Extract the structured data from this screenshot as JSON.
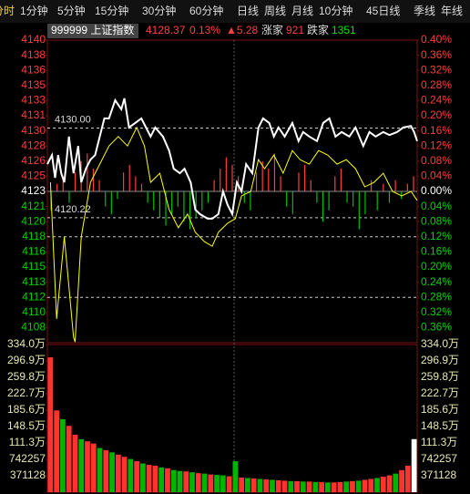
{
  "tabs": [
    "分时",
    "1分钟",
    "5分钟",
    "15分钟",
    "30分钟",
    "60分钟",
    "日线",
    "周线",
    "月线",
    "10分钟",
    "45日线",
    "季线",
    "年线"
  ],
  "header": {
    "code_name": "999999 上证指数",
    "price": "4128.37",
    "change_pct": "0.13%",
    "change": "▲5.28",
    "up_label": "涨家",
    "up_count": "921",
    "down_label": "跌家",
    "down_count": "1351"
  },
  "chart_data": [
    {
      "type": "line",
      "name": "price-panel",
      "ylim": [
        -0.4,
        0.4
      ],
      "xlim": [
        0,
        240
      ],
      "yticks": [
        {
          "value": 0.4,
          "label": "4140"
        },
        {
          "value": 0.36,
          "label": "4138"
        },
        {
          "value": 0.32,
          "label": "4136"
        },
        {
          "value": 0.28,
          "label": "4135"
        },
        {
          "value": 0.24,
          "label": "4133"
        },
        {
          "value": 0.2,
          "label": "4131"
        },
        {
          "value": 0.16,
          "label": "4130"
        },
        {
          "value": 0.12,
          "label": "4128"
        },
        {
          "value": 0.08,
          "label": "4126"
        },
        {
          "value": 0.04,
          "label": "4125"
        },
        {
          "value": 0,
          "label": "4123"
        },
        {
          "value": -0.04,
          "label": "4121"
        },
        {
          "value": -0.08,
          "label": "4120"
        },
        {
          "value": -0.12,
          "label": "4118"
        },
        {
          "value": -0.16,
          "label": "4116"
        },
        {
          "value": -0.2,
          "label": "4115"
        },
        {
          "value": -0.24,
          "label": "4113"
        },
        {
          "value": -0.28,
          "label": "4112"
        },
        {
          "value": -0.32,
          "label": "4110"
        },
        {
          "value": -0.36,
          "label": "4108"
        }
      ],
      "y2ticks": [
        {
          "value": 0.4,
          "label": "0.40%"
        },
        {
          "value": 0.36,
          "label": "0.36%"
        },
        {
          "value": 0.32,
          "label": "0.32%"
        },
        {
          "value": 0.28,
          "label": "0.28%"
        },
        {
          "value": 0.24,
          "label": "0.24%"
        },
        {
          "value": 0.2,
          "label": "0.20%"
        },
        {
          "value": 0.16,
          "label": "0.16%"
        },
        {
          "value": 0.12,
          "label": "0.12%"
        },
        {
          "value": 0.08,
          "label": "0.08%"
        },
        {
          "value": 0.04,
          "label": "0.04%"
        },
        {
          "value": 0,
          "label": "0.00%"
        },
        {
          "value": -0.04,
          "label": "0.04%"
        },
        {
          "value": -0.08,
          "label": "0.08%"
        },
        {
          "value": -0.12,
          "label": "0.12%"
        },
        {
          "value": -0.16,
          "label": "0.16%"
        },
        {
          "value": -0.2,
          "label": "0.20%"
        },
        {
          "value": -0.24,
          "label": "0.24%"
        },
        {
          "value": -0.28,
          "label": "0.28%"
        },
        {
          "value": -0.32,
          "label": "0.32%"
        },
        {
          "value": -0.36,
          "label": "0.36%"
        }
      ],
      "annotations": [
        {
          "value": 0.1676,
          "label": "4130.00"
        },
        {
          "value": -0.0696,
          "label": "4120.22"
        }
      ],
      "dashed_levels": [
        -0.12,
        -0.28
      ],
      "series": [
        {
          "color": "#ffffff",
          "x": [
            0,
            3,
            5,
            7,
            9,
            11,
            14,
            17,
            20,
            22,
            25,
            28,
            31,
            34,
            37,
            40,
            44,
            48,
            50,
            53,
            57,
            61,
            64,
            67,
            70,
            75,
            79,
            82,
            86,
            89,
            93,
            96,
            99,
            104,
            107,
            111,
            114,
            117,
            120,
            123,
            126,
            129,
            133,
            137,
            140,
            144,
            147,
            150,
            154,
            159,
            163,
            166,
            170,
            175,
            179,
            183,
            187,
            191,
            196,
            200,
            205,
            209,
            213,
            218,
            222,
            227,
            231,
            236,
            238,
            240
          ],
          "values": [
            0.072,
            0.096,
            0.036,
            0.096,
            0.048,
            0.024,
            0.145,
            0.048,
            0.12,
            0.024,
            0.06,
            0.084,
            0.096,
            0.145,
            0.193,
            0.193,
            0.241,
            0.217,
            0.246,
            0.169,
            0.181,
            0.193,
            0.169,
            0.145,
            0.169,
            0.145,
            0.108,
            0.06,
            0.048,
            0.06,
            0.024,
            -0.048,
            -0.06,
            -0.072,
            -0.072,
            -0.06,
            0,
            -0.036,
            -0.06,
            0.024,
            0,
            0.072,
            0.048,
            0.169,
            0.193,
            0.181,
            0.145,
            0.169,
            0.145,
            0.181,
            0.133,
            0.157,
            0.145,
            0.133,
            0.181,
            0.193,
            0.145,
            0.157,
            0.145,
            0.169,
            0.12,
            0.157,
            0.145,
            0.157,
            0.149,
            0.157,
            0.169,
            0.173,
            0.157,
            0.133
          ]
        },
        {
          "color": "#ffff00",
          "x": [
            2,
            6,
            11,
            17,
            18,
            22,
            28,
            34,
            40,
            46,
            52,
            58,
            63,
            67,
            73,
            79,
            85,
            91,
            96,
            102,
            107,
            111,
            117,
            122,
            126,
            132,
            137,
            141,
            147,
            153,
            159,
            164,
            170,
            176,
            182,
            188,
            194,
            200,
            206,
            212,
            218,
            224,
            230,
            236,
            240
          ],
          "values": [
            0.024,
            -0.337,
            -0.12,
            -0.386,
            -0.398,
            -0.12,
            0.024,
            0.072,
            0.12,
            0.145,
            0.12,
            0.169,
            0.12,
            0.024,
            0.048,
            -0.048,
            -0.096,
            -0.06,
            -0.108,
            -0.133,
            -0.145,
            -0.108,
            -0.084,
            -0.072,
            -0.012,
            0,
            0.084,
            0.06,
            0.096,
            0.048,
            0.108,
            0.084,
            0.072,
            0.108,
            0.096,
            0.072,
            0.084,
            0.06,
            0.012,
            0.024,
            0.048,
            0,
            -0.012,
            0,
            -0.024
          ]
        }
      ],
      "breadth": [
        -0.05,
        0.02,
        0.04,
        -0.03,
        0.05,
        0.08,
        0.1,
        0.06,
        0.03,
        -0.04,
        -0.06,
        -0.02,
        0.05,
        0.07,
        0.04,
        0.02,
        -0.03,
        -0.05,
        -0.07,
        -0.09,
        -0.06,
        -0.04,
        -0.08,
        -0.1,
        -0.07,
        -0.05,
        -0.03,
        0.03,
        0.06,
        0.09,
        0.07,
        0.04,
        -0.03,
        -0.05,
        0.05,
        0.08,
        0.06,
        0.1,
        0.04,
        -0.04,
        -0.06,
        0.05,
        0.07,
        0.03,
        -0.03,
        -0.08,
        -0.05,
        0.04,
        0.06,
        -0.03,
        -0.04,
        -0.1,
        -0.06,
        0.03,
        -0.05,
        0.02,
        -0.03,
        0.03,
        -0.02,
        0.02,
        0.04
      ]
    },
    {
      "type": "bar",
      "name": "volume-panel",
      "ylim": [
        0,
        3340000
      ],
      "yticks": [
        {
          "value": 3340000,
          "label": "334.0万"
        },
        {
          "value": 2969000,
          "label": "296.9万"
        },
        {
          "value": 2598000,
          "label": "259.8万"
        },
        {
          "value": 2227000,
          "label": "222.7万"
        },
        {
          "value": 1856000,
          "label": "185.6万"
        },
        {
          "value": 1485000,
          "label": "148.5万"
        },
        {
          "value": 1113000,
          "label": "111.3万"
        },
        742257,
        371128
      ],
      "values": [
        3050000,
        1850000,
        1650000,
        1500000,
        1300000,
        1200000,
        1150000,
        1100000,
        1000000,
        950000,
        900000,
        850000,
        800000,
        750000,
        700000,
        650000,
        620000,
        600000,
        560000,
        540000,
        500000,
        480000,
        470000,
        450000,
        430000,
        420000,
        400000,
        390000,
        380000,
        360000,
        700000,
        330000,
        320000,
        310000,
        300000,
        290000,
        280000,
        270000,
        260000,
        250000,
        250000,
        240000,
        240000,
        230000,
        230000,
        220000,
        220000,
        230000,
        240000,
        250000,
        260000,
        280000,
        300000,
        320000,
        350000,
        380000,
        420000,
        500000,
        600000,
        1200000
      ],
      "colors": [
        "red",
        "red",
        "green",
        "red",
        "red",
        "green",
        "red",
        "red",
        "green",
        "red",
        "green",
        "red",
        "red",
        "green",
        "red",
        "green",
        "red",
        "red",
        "green",
        "red",
        "green",
        "green",
        "red",
        "green",
        "red",
        "green",
        "red",
        "green",
        "green",
        "red",
        "green",
        "red",
        "green",
        "red",
        "green",
        "red",
        "green",
        "red",
        "red",
        "green",
        "red",
        "green",
        "red",
        "green",
        "red",
        "green",
        "red",
        "red",
        "green",
        "red",
        "green",
        "red",
        "red",
        "green",
        "red",
        "red",
        "green",
        "red",
        "red",
        "white"
      ]
    }
  ]
}
